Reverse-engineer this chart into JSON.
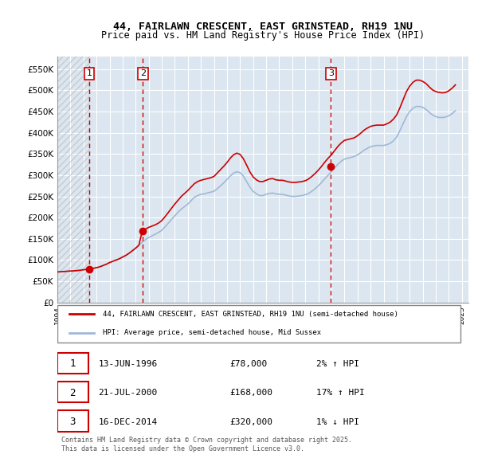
{
  "title_line1": "44, FAIRLAWN CRESCENT, EAST GRINSTEAD, RH19 1NU",
  "title_line2": "Price paid vs. HM Land Registry's House Price Index (HPI)",
  "ylabel": "",
  "ylim": [
    0,
    580000
  ],
  "yticks": [
    0,
    50000,
    100000,
    150000,
    200000,
    250000,
    300000,
    350000,
    400000,
    450000,
    500000,
    550000
  ],
  "ytick_labels": [
    "£0",
    "£50K",
    "£100K",
    "£150K",
    "£200K",
    "£250K",
    "£300K",
    "£350K",
    "£400K",
    "£450K",
    "£500K",
    "£550K"
  ],
  "background_color": "#ffffff",
  "plot_bg_color": "#dce6f0",
  "grid_color": "#ffffff",
  "hpi_line_color": "#a0b8d8",
  "price_line_color": "#cc0000",
  "sale_marker_color": "#cc0000",
  "sale_vline_color": "#cc0000",
  "legend_label_price": "44, FAIRLAWN CRESCENT, EAST GRINSTEAD, RH19 1NU (semi-detached house)",
  "legend_label_hpi": "HPI: Average price, semi-detached house, Mid Sussex",
  "transaction_labels": [
    "1",
    "2",
    "3"
  ],
  "transaction_dates": [
    "13-JUN-1996",
    "21-JUL-2000",
    "16-DEC-2014"
  ],
  "transaction_prices": [
    "£78,000",
    "£168,000",
    "£320,000"
  ],
  "transaction_hpi": [
    "2% ↑ HPI",
    "17% ↑ HPI",
    "1% ↓ HPI"
  ],
  "sale_years": [
    1996.45,
    2000.55,
    2014.96
  ],
  "sale_values": [
    78000,
    168000,
    320000
  ],
  "footer": "Contains HM Land Registry data © Crown copyright and database right 2025.\nThis data is licensed under the Open Government Licence v3.0.",
  "hpi_data_years": [
    1994.0,
    1994.25,
    1994.5,
    1994.75,
    1995.0,
    1995.25,
    1995.5,
    1995.75,
    1996.0,
    1996.25,
    1996.5,
    1996.75,
    1997.0,
    1997.25,
    1997.5,
    1997.75,
    1998.0,
    1998.25,
    1998.5,
    1998.75,
    1999.0,
    1999.25,
    1999.5,
    1999.75,
    2000.0,
    2000.25,
    2000.5,
    2000.75,
    2001.0,
    2001.25,
    2001.5,
    2001.75,
    2002.0,
    2002.25,
    2002.5,
    2002.75,
    2003.0,
    2003.25,
    2003.5,
    2003.75,
    2004.0,
    2004.25,
    2004.5,
    2004.75,
    2005.0,
    2005.25,
    2005.5,
    2005.75,
    2006.0,
    2006.25,
    2006.5,
    2006.75,
    2007.0,
    2007.25,
    2007.5,
    2007.75,
    2008.0,
    2008.25,
    2008.5,
    2008.75,
    2009.0,
    2009.25,
    2009.5,
    2009.75,
    2010.0,
    2010.25,
    2010.5,
    2010.75,
    2011.0,
    2011.25,
    2011.5,
    2011.75,
    2012.0,
    2012.25,
    2012.5,
    2012.75,
    2013.0,
    2013.25,
    2013.5,
    2013.75,
    2014.0,
    2014.25,
    2014.5,
    2014.75,
    2015.0,
    2015.25,
    2015.5,
    2015.75,
    2016.0,
    2016.25,
    2016.5,
    2016.75,
    2017.0,
    2017.25,
    2017.5,
    2017.75,
    2018.0,
    2018.25,
    2018.5,
    2018.75,
    2019.0,
    2019.25,
    2019.5,
    2019.75,
    2020.0,
    2020.25,
    2020.5,
    2020.75,
    2021.0,
    2021.25,
    2021.5,
    2021.75,
    2022.0,
    2022.25,
    2022.5,
    2022.75,
    2023.0,
    2023.25,
    2023.5,
    2023.75,
    2024.0,
    2024.25,
    2024.5
  ],
  "hpi_values": [
    72000,
    72500,
    73000,
    73500,
    74000,
    74500,
    75000,
    76000,
    77000,
    78000,
    79000,
    80500,
    82000,
    84000,
    87000,
    90000,
    94000,
    97000,
    100000,
    103000,
    107000,
    111000,
    116000,
    122000,
    128000,
    135000,
    142000,
    148000,
    153000,
    157000,
    161000,
    165000,
    170000,
    178000,
    187000,
    196000,
    204000,
    213000,
    220000,
    226000,
    232000,
    240000,
    248000,
    252000,
    255000,
    256000,
    258000,
    260000,
    262000,
    268000,
    275000,
    282000,
    290000,
    298000,
    305000,
    308000,
    306000,
    298000,
    285000,
    272000,
    262000,
    256000,
    252000,
    252000,
    255000,
    257000,
    258000,
    256000,
    255000,
    255000,
    253000,
    251000,
    250000,
    250000,
    251000,
    252000,
    254000,
    257000,
    262000,
    268000,
    275000,
    283000,
    292000,
    300000,
    308000,
    317000,
    326000,
    333000,
    338000,
    340000,
    342000,
    344000,
    348000,
    353000,
    359000,
    363000,
    367000,
    369000,
    370000,
    370000,
    370000,
    372000,
    375000,
    381000,
    390000,
    405000,
    422000,
    438000,
    450000,
    458000,
    462000,
    462000,
    460000,
    455000,
    448000,
    442000,
    438000,
    436000,
    436000,
    437000,
    440000,
    445000,
    452000
  ],
  "price_data_years": [
    1994.0,
    1994.25,
    1994.5,
    1994.75,
    1995.0,
    1995.25,
    1995.5,
    1995.75,
    1996.0,
    1996.25,
    1996.5,
    1996.75,
    1997.0,
    1997.25,
    1997.5,
    1997.75,
    1998.0,
    1998.25,
    1998.5,
    1998.75,
    1999.0,
    1999.25,
    1999.5,
    1999.75,
    2000.0,
    2000.25,
    2000.5,
    2000.75,
    2001.0,
    2001.25,
    2001.5,
    2001.75,
    2002.0,
    2002.25,
    2002.5,
    2002.75,
    2003.0,
    2003.25,
    2003.5,
    2003.75,
    2004.0,
    2004.25,
    2004.5,
    2004.75,
    2005.0,
    2005.25,
    2005.5,
    2005.75,
    2006.0,
    2006.25,
    2006.5,
    2006.75,
    2007.0,
    2007.25,
    2007.5,
    2007.75,
    2008.0,
    2008.25,
    2008.5,
    2008.75,
    2009.0,
    2009.25,
    2009.5,
    2009.75,
    2010.0,
    2010.25,
    2010.5,
    2010.75,
    2011.0,
    2011.25,
    2011.5,
    2011.75,
    2012.0,
    2012.25,
    2012.5,
    2012.75,
    2013.0,
    2013.25,
    2013.5,
    2013.75,
    2014.0,
    2014.25,
    2014.5,
    2014.75,
    2015.0,
    2015.25,
    2015.5,
    2015.75,
    2016.0,
    2016.25,
    2016.5,
    2016.75,
    2017.0,
    2017.25,
    2017.5,
    2017.75,
    2018.0,
    2018.25,
    2018.5,
    2018.75,
    2019.0,
    2019.25,
    2019.5,
    2019.75,
    2020.0,
    2020.25,
    2020.5,
    2020.75,
    2021.0,
    2021.25,
    2021.5,
    2021.75,
    2022.0,
    2022.25,
    2022.5,
    2022.75,
    2023.0,
    2023.25,
    2023.5,
    2023.75,
    2024.0,
    2024.25,
    2024.5
  ],
  "price_indexed_values": [
    72000,
    72500,
    73000,
    73500,
    74000,
    74500,
    75000,
    76000,
    77000,
    78000,
    79000,
    80500,
    82000,
    84000,
    87000,
    90000,
    94000,
    97000,
    100000,
    103000,
    107000,
    111000,
    116000,
    122000,
    128000,
    135000,
    168000,
    173000,
    177000,
    180000,
    183000,
    187000,
    193000,
    202000,
    212000,
    222000,
    232000,
    241000,
    250000,
    257000,
    264000,
    272000,
    280000,
    285000,
    288000,
    290000,
    292000,
    294000,
    297000,
    305000,
    313000,
    321000,
    330000,
    340000,
    348000,
    352000,
    349000,
    339000,
    324000,
    308000,
    296000,
    289000,
    285000,
    285000,
    288000,
    291000,
    292000,
    289000,
    288000,
    288000,
    286000,
    284000,
    283000,
    283000,
    284000,
    285000,
    287000,
    291000,
    297000,
    304000,
    312000,
    321000,
    331000,
    340000,
    348000,
    358000,
    368000,
    376000,
    382000,
    384000,
    386000,
    388000,
    393000,
    399000,
    406000,
    411000,
    415000,
    417000,
    418000,
    418000,
    418000,
    421000,
    425000,
    432000,
    442000,
    459000,
    478000,
    497000,
    510000,
    519000,
    524000,
    524000,
    521000,
    516000,
    508000,
    501000,
    497000,
    495000,
    494000,
    495000,
    499000,
    505000,
    513000
  ],
  "xlim_start": 1994.0,
  "xlim_end": 2025.5
}
